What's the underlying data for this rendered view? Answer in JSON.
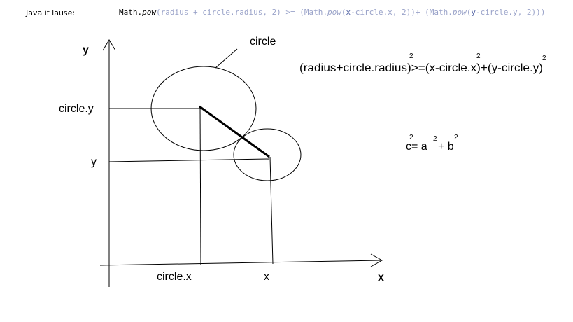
{
  "header": {
    "label": "Java if lause:",
    "code": {
      "t1": "Math.",
      "t2": "pow",
      "t3": "(radius + circle.radius, 2) >= (Math.",
      "t4": "pow",
      "t5": "(",
      "t6": "x",
      "t7": "-circle.x, 2))+ (Math.",
      "t8": "pow",
      "t9": "(",
      "t10": "y",
      "t11": "-circle.y, 2)))"
    }
  },
  "diagram": {
    "axis_x_label": "x",
    "axis_y_label": "y",
    "circle_label": "circle",
    "circle_y_label": "circle.y",
    "y_label": "y",
    "circle_x_label": "circle.x",
    "x_label": "x"
  },
  "formula_main": {
    "base": "(radius+circle.radius)>=(x-circle.x)+(y-circle.y)",
    "exponent_1": "2",
    "exponent_2": "2",
    "exponent_3": "2"
  },
  "formula_pythagoras": {
    "c": "c",
    "equals_a": " = a",
    "plus_b": "+ b",
    "exponent_c": "2",
    "exponent_a": "2",
    "exponent_b": "2"
  }
}
